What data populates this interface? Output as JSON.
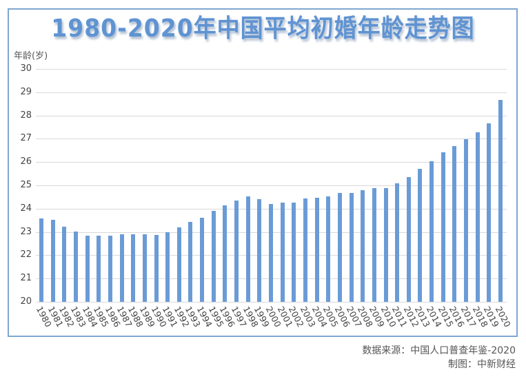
{
  "chart_data": {
    "type": "bar",
    "title": "1980-2020年中国平均初婚年龄走势图",
    "xlabel": "",
    "ylabel": "年龄(岁)",
    "ylim": [
      20,
      30
    ],
    "yticks": [
      20,
      21,
      22,
      23,
      24,
      25,
      26,
      27,
      28,
      29,
      30
    ],
    "grid": true,
    "legend": null,
    "categories": [
      "1980",
      "1981",
      "1982",
      "1983",
      "1984",
      "1985",
      "1986",
      "1987",
      "1988",
      "1989",
      "1990",
      "1991",
      "1992",
      "1993",
      "1994",
      "1995",
      "1996",
      "1997",
      "1998",
      "1999",
      "2000",
      "2001",
      "2002",
      "2003",
      "2004",
      "2005",
      "2006",
      "2007",
      "2008",
      "2009",
      "2010",
      "2011",
      "2012",
      "2013",
      "2014",
      "2015",
      "2016",
      "2017",
      "2018",
      "2019",
      "2020"
    ],
    "values": [
      23.59,
      23.52,
      23.22,
      23.02,
      22.85,
      22.83,
      22.83,
      22.89,
      22.91,
      22.91,
      22.87,
      22.98,
      23.21,
      23.44,
      23.62,
      23.9,
      24.14,
      24.35,
      24.53,
      24.4,
      24.2,
      24.25,
      24.27,
      24.44,
      24.46,
      24.52,
      24.67,
      24.67,
      24.78,
      24.89,
      24.89,
      25.09,
      25.35,
      25.72,
      26.05,
      26.42,
      26.69,
      26.99,
      27.29,
      27.66,
      28.67
    ],
    "bar_color": "#6a9bd6"
  },
  "header": {
    "title": "1980-2020年中国平均初婚年龄走势图",
    "y_unit": "年龄(岁)"
  },
  "footer": {
    "source": "数据来源：中国人口普查年鉴-2020",
    "credit": "制图：中新财经"
  },
  "colors": {
    "title": "#5f93d2",
    "bar": "#6a9bd6",
    "frame": "#7ea6cf",
    "grid": "#d9d9d9"
  }
}
